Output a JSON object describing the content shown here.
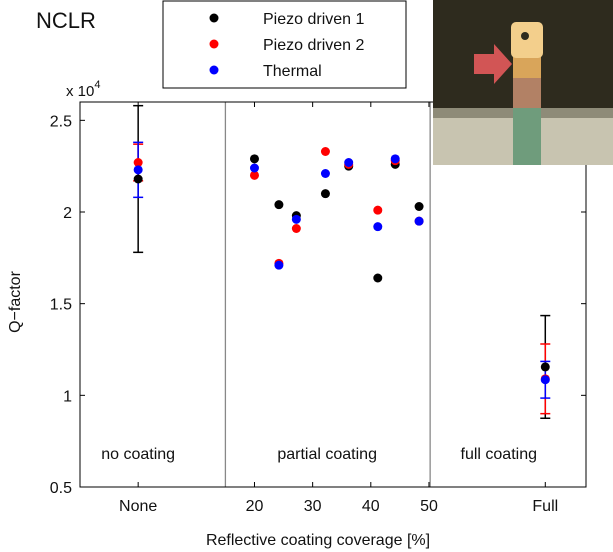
{
  "chart_data": {
    "type": "scatter",
    "title": "NCLR",
    "xlabel": "Reflective coating coverage [%]",
    "ylabel": "Q−factor",
    "y_multiplier": "x 10",
    "y_multiplier_exp": "4",
    "ylim": [
      0.5,
      2.6
    ],
    "y_ticks": [
      0.5,
      1,
      1.5,
      2,
      2.5
    ],
    "y_tick_labels": [
      "0.5",
      "1",
      "1.5",
      "2",
      "2.5"
    ],
    "x_ticks": [
      {
        "label": "None",
        "x": 0
      },
      {
        "label": "20",
        "x": 20
      },
      {
        "label": "30",
        "x": 30
      },
      {
        "label": "40",
        "x": 40
      },
      {
        "label": "50",
        "x": 50
      },
      {
        "label": "Full",
        "x": 70
      }
    ],
    "xlim": [
      -10,
      77
    ],
    "dividers_x": [
      15,
      50.2
    ],
    "regions": [
      {
        "label": "no coating",
        "x": 0
      },
      {
        "label": "partial coating",
        "x": 32.5
      },
      {
        "label": "full coating",
        "x": 62
      }
    ],
    "series": [
      {
        "name": "Piezo driven 1",
        "color": "#000000",
        "points": [
          {
            "x": 0,
            "y": 2.18,
            "err": 0.4
          },
          {
            "x": 20,
            "y": 2.29
          },
          {
            "x": 24.2,
            "y": 2.04
          },
          {
            "x": 27.2,
            "y": 1.98
          },
          {
            "x": 32.2,
            "y": 2.1
          },
          {
            "x": 36.2,
            "y": 2.25
          },
          {
            "x": 41.2,
            "y": 1.64
          },
          {
            "x": 44.2,
            "y": 2.26
          },
          {
            "x": 48.3,
            "y": 2.03
          },
          {
            "x": 70,
            "y": 1.155,
            "err": 0.28
          }
        ]
      },
      {
        "name": "Piezo driven 2",
        "color": "#ff0000",
        "points": [
          {
            "x": 0,
            "y": 2.27,
            "err": 0.1
          },
          {
            "x": 20,
            "y": 2.2
          },
          {
            "x": 24.2,
            "y": 1.72
          },
          {
            "x": 27.2,
            "y": 1.91
          },
          {
            "x": 32.2,
            "y": 2.33
          },
          {
            "x": 36.2,
            "y": 2.26
          },
          {
            "x": 41.2,
            "y": 2.01
          },
          {
            "x": 44.2,
            "y": 2.28
          },
          {
            "x": 48.3,
            "y": 1.95
          },
          {
            "x": 70,
            "y": 1.09,
            "err": 0.19
          }
        ]
      },
      {
        "name": "Thermal",
        "color": "#0000ff",
        "points": [
          {
            "x": 0,
            "y": 2.23,
            "err": 0.15
          },
          {
            "x": 20,
            "y": 2.24
          },
          {
            "x": 24.2,
            "y": 1.71
          },
          {
            "x": 27.2,
            "y": 1.96
          },
          {
            "x": 32.2,
            "y": 2.21
          },
          {
            "x": 36.2,
            "y": 2.27
          },
          {
            "x": 41.2,
            "y": 1.92
          },
          {
            "x": 44.2,
            "y": 2.29
          },
          {
            "x": 48.3,
            "y": 1.95
          },
          {
            "x": 70,
            "y": 1.085,
            "err": 0.1
          }
        ]
      }
    ]
  }
}
